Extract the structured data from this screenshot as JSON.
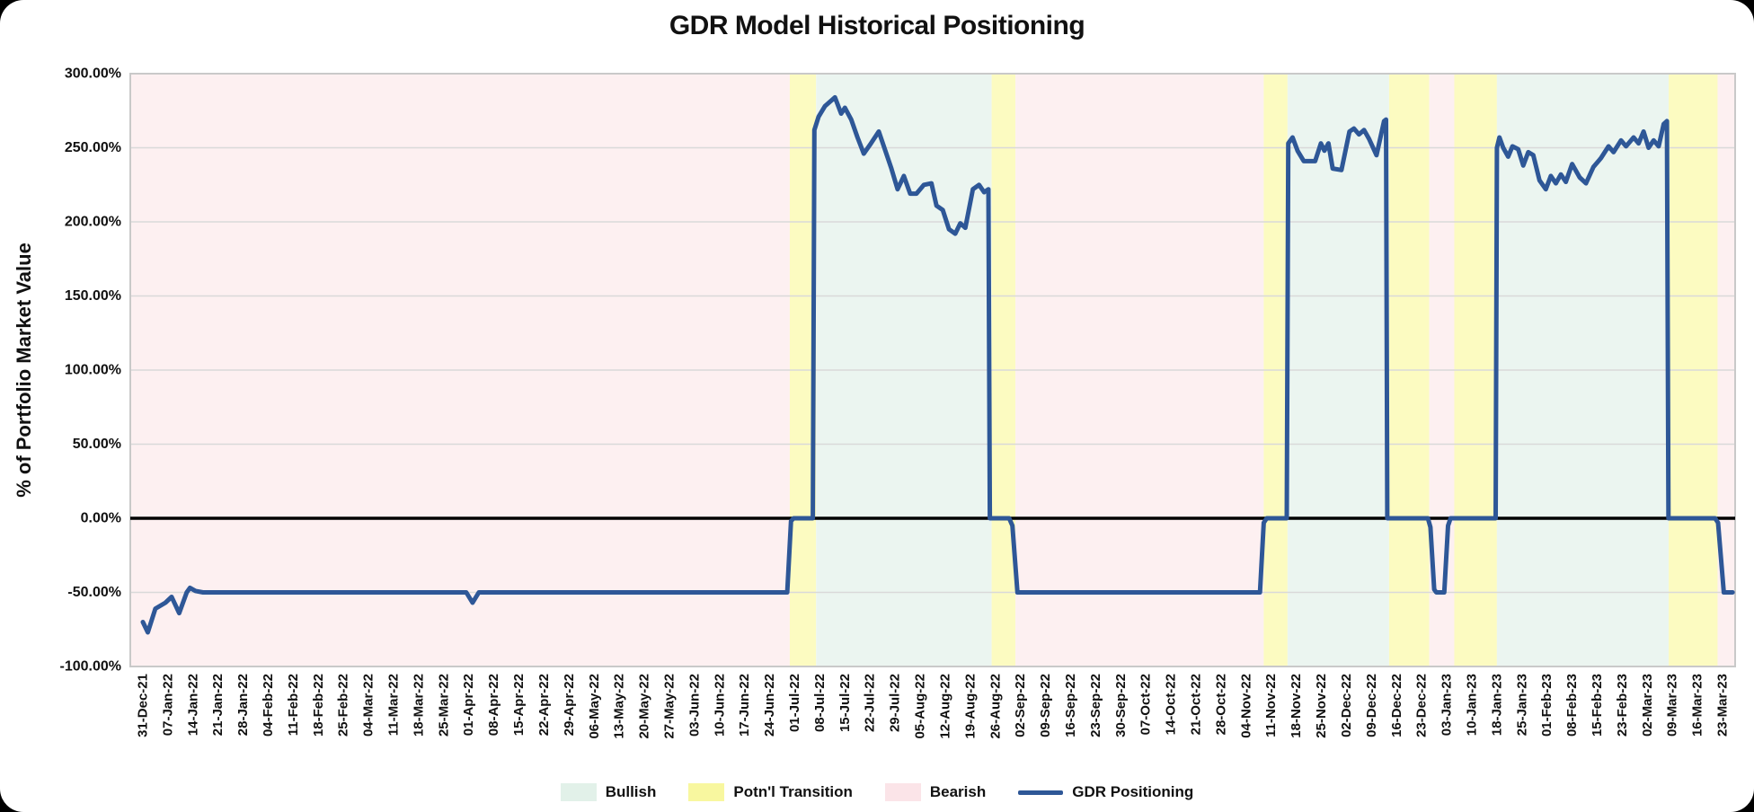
{
  "chart_data": {
    "type": "line",
    "title": "GDR Model Historical Positioning",
    "ylabel": "% of Portfolio Market Value",
    "ylim": [
      -100,
      300
    ],
    "grid": true,
    "legend_position": "bottom",
    "yticks": [
      {
        "value": 300,
        "label": "300.00%"
      },
      {
        "value": 250,
        "label": "250.00%"
      },
      {
        "value": 200,
        "label": "200.00%"
      },
      {
        "value": 150,
        "label": "150.00%"
      },
      {
        "value": 100,
        "label": "100.00%"
      },
      {
        "value": 50,
        "label": "50.00%"
      },
      {
        "value": 0,
        "label": "0.00%"
      },
      {
        "value": -50,
        "label": "-50.00%"
      },
      {
        "value": -100,
        "label": "-100.00%"
      }
    ],
    "categories": [
      "31-Dec-21",
      "07-Jan-22",
      "14-Jan-22",
      "21-Jan-22",
      "28-Jan-22",
      "04-Feb-22",
      "11-Feb-22",
      "18-Feb-22",
      "25-Feb-22",
      "04-Mar-22",
      "11-Mar-22",
      "18-Mar-22",
      "25-Mar-22",
      "01-Apr-22",
      "08-Apr-22",
      "15-Apr-22",
      "22-Apr-22",
      "29-Apr-22",
      "06-May-22",
      "13-May-22",
      "20-May-22",
      "27-May-22",
      "03-Jun-22",
      "10-Jun-22",
      "17-Jun-22",
      "24-Jun-22",
      "01-Jul-22",
      "08-Jul-22",
      "15-Jul-22",
      "22-Jul-22",
      "29-Jul-22",
      "05-Aug-22",
      "12-Aug-22",
      "19-Aug-22",
      "26-Aug-22",
      "02-Sep-22",
      "09-Sep-22",
      "16-Sep-22",
      "23-Sep-22",
      "30-Sep-22",
      "07-Oct-22",
      "14-Oct-22",
      "21-Oct-22",
      "28-Oct-22",
      "04-Nov-22",
      "11-Nov-22",
      "18-Nov-22",
      "25-Nov-22",
      "02-Dec-22",
      "09-Dec-22",
      "16-Dec-22",
      "23-Dec-22",
      "03-Jan-23",
      "10-Jan-23",
      "18-Jan-23",
      "25-Jan-23",
      "01-Feb-23",
      "08-Feb-23",
      "15-Feb-23",
      "23-Feb-23",
      "02-Mar-23",
      "09-Mar-23",
      "16-Mar-23",
      "23-Mar-23"
    ],
    "regimes": [
      {
        "type": "bearish",
        "from": -0.5,
        "to": 25.8
      },
      {
        "type": "transition",
        "from": 25.8,
        "to": 26.85
      },
      {
        "type": "bullish",
        "from": 26.85,
        "to": 33.85
      },
      {
        "type": "transition",
        "from": 33.85,
        "to": 34.8
      },
      {
        "type": "bearish",
        "from": 34.8,
        "to": 44.7
      },
      {
        "type": "transition",
        "from": 44.7,
        "to": 45.65
      },
      {
        "type": "bullish",
        "from": 45.65,
        "to": 49.7
      },
      {
        "type": "transition",
        "from": 49.7,
        "to": 51.3
      },
      {
        "type": "bearish",
        "from": 51.3,
        "to": 52.3
      },
      {
        "type": "transition",
        "from": 52.3,
        "to": 54.0
      },
      {
        "type": "bullish",
        "from": 54.0,
        "to": 60.85
      },
      {
        "type": "transition",
        "from": 60.85,
        "to": 62.8
      },
      {
        "type": "bearish",
        "from": 62.8,
        "to": 63.5
      }
    ],
    "series": [
      {
        "name": "GDR Positioning",
        "points": [
          [
            0,
            -70
          ],
          [
            0.2,
            -77
          ],
          [
            0.5,
            -61
          ],
          [
            0.9,
            -57
          ],
          [
            1.15,
            -53
          ],
          [
            1.45,
            -64
          ],
          [
            1.75,
            -50
          ],
          [
            1.88,
            -47
          ],
          [
            2.1,
            -49
          ],
          [
            2.4,
            -50
          ],
          [
            12.9,
            -50
          ],
          [
            13.15,
            -57
          ],
          [
            13.4,
            -50
          ],
          [
            25.7,
            -50
          ],
          [
            25.85,
            -2
          ],
          [
            25.95,
            0
          ],
          [
            26.72,
            0
          ],
          [
            26.78,
            262
          ],
          [
            26.95,
            271
          ],
          [
            27.2,
            278
          ],
          [
            27.6,
            284
          ],
          [
            27.85,
            273
          ],
          [
            28.0,
            277
          ],
          [
            28.25,
            269
          ],
          [
            28.5,
            257
          ],
          [
            28.75,
            246
          ],
          [
            29.0,
            252
          ],
          [
            29.35,
            261
          ],
          [
            29.85,
            236
          ],
          [
            30.1,
            222
          ],
          [
            30.35,
            231
          ],
          [
            30.6,
            219
          ],
          [
            30.85,
            219
          ],
          [
            31.15,
            225
          ],
          [
            31.45,
            226
          ],
          [
            31.65,
            211
          ],
          [
            31.9,
            208
          ],
          [
            32.15,
            195
          ],
          [
            32.4,
            192
          ],
          [
            32.6,
            199
          ],
          [
            32.8,
            196
          ],
          [
            33.1,
            222
          ],
          [
            33.35,
            225
          ],
          [
            33.55,
            220
          ],
          [
            33.72,
            222
          ],
          [
            33.78,
            0
          ],
          [
            34.55,
            0
          ],
          [
            34.68,
            -5
          ],
          [
            34.88,
            -50
          ],
          [
            44.55,
            -50
          ],
          [
            44.7,
            -3
          ],
          [
            44.82,
            0
          ],
          [
            45.62,
            0
          ],
          [
            45.68,
            253
          ],
          [
            45.85,
            257
          ],
          [
            46.05,
            248
          ],
          [
            46.3,
            241
          ],
          [
            46.75,
            241
          ],
          [
            46.98,
            253
          ],
          [
            47.12,
            248
          ],
          [
            47.28,
            253
          ],
          [
            47.45,
            236
          ],
          [
            47.8,
            235
          ],
          [
            48.12,
            261
          ],
          [
            48.3,
            263
          ],
          [
            48.5,
            259
          ],
          [
            48.7,
            262
          ],
          [
            48.9,
            256
          ],
          [
            49.2,
            245
          ],
          [
            49.5,
            268
          ],
          [
            49.58,
            269
          ],
          [
            49.63,
            0
          ],
          [
            51.25,
            0
          ],
          [
            51.35,
            -6
          ],
          [
            51.5,
            -48
          ],
          [
            51.58,
            -50
          ],
          [
            51.9,
            -50
          ],
          [
            52.05,
            -5
          ],
          [
            52.15,
            0
          ],
          [
            53.95,
            0
          ],
          [
            54.0,
            250
          ],
          [
            54.1,
            257
          ],
          [
            54.25,
            250
          ],
          [
            54.45,
            244
          ],
          [
            54.62,
            251
          ],
          [
            54.85,
            249
          ],
          [
            55.05,
            238
          ],
          [
            55.25,
            247
          ],
          [
            55.45,
            245
          ],
          [
            55.7,
            228
          ],
          [
            55.95,
            222
          ],
          [
            56.15,
            231
          ],
          [
            56.35,
            226
          ],
          [
            56.55,
            232
          ],
          [
            56.75,
            227
          ],
          [
            57.0,
            239
          ],
          [
            57.3,
            230
          ],
          [
            57.55,
            226
          ],
          [
            57.85,
            237
          ],
          [
            58.15,
            243
          ],
          [
            58.45,
            251
          ],
          [
            58.65,
            247
          ],
          [
            58.95,
            255
          ],
          [
            59.15,
            251
          ],
          [
            59.45,
            257
          ],
          [
            59.65,
            253
          ],
          [
            59.85,
            261
          ],
          [
            60.05,
            250
          ],
          [
            60.25,
            255
          ],
          [
            60.45,
            251
          ],
          [
            60.65,
            266
          ],
          [
            60.78,
            268
          ],
          [
            60.84,
            0
          ],
          [
            62.7,
            0
          ],
          [
            62.82,
            -3
          ],
          [
            63.05,
            -50
          ],
          [
            63.4,
            -50
          ]
        ]
      }
    ],
    "legend": [
      {
        "label": "Bullish",
        "swatch": "bullish"
      },
      {
        "label": "Potn'l Transition",
        "swatch": "transition"
      },
      {
        "label": "Bearish",
        "swatch": "bearish"
      },
      {
        "label": "GDR Positioning",
        "swatch": "line"
      }
    ]
  },
  "colors": {
    "band_bearish": "#fdf0f1",
    "band_bullish": "#ebf5f0",
    "band_transition": "#fcfbc1",
    "legend_bearish": "#fbe4e8",
    "legend_bullish": "#e2f1e9",
    "legend_transition": "#f8f79f",
    "line": "#2e5797",
    "zero_line": "#000000",
    "gridline": "#d9d9d9",
    "plot_border": "#c9c9c9",
    "tick_text": "#111111"
  }
}
